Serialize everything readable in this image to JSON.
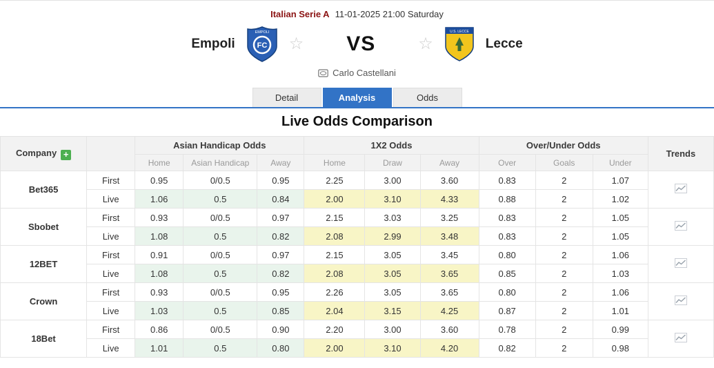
{
  "header": {
    "league": "Italian Serie A",
    "kickoff": "11-01-2025 21:00 Saturday",
    "home": {
      "name": "Empoli"
    },
    "away": {
      "name": "Lecce"
    },
    "vs_label": "VS",
    "venue": "Carlo Castellani",
    "star_glyph": "☆"
  },
  "tabs": [
    {
      "label": "Detail",
      "active": false
    },
    {
      "label": "Analysis",
      "active": true
    },
    {
      "label": "Odds",
      "active": false
    }
  ],
  "section_title": "Live Odds Comparison",
  "table": {
    "company_header": "Company",
    "add_icon": "+",
    "trends_header": "Trends",
    "groups": [
      {
        "label": "Asian Handicap Odds",
        "subs": [
          "Home",
          "Asian Handicap",
          "Away"
        ]
      },
      {
        "label": "1X2 Odds",
        "subs": [
          "Home",
          "Draw",
          "Away"
        ]
      },
      {
        "label": "Over/Under Odds",
        "subs": [
          "Over",
          "Goals",
          "Under"
        ]
      }
    ],
    "companies": [
      {
        "name": "Bet365",
        "rows": [
          {
            "type": "First",
            "ah": [
              "0.95",
              "0/0.5",
              "0.95"
            ],
            "x12": [
              "2.25",
              "3.00",
              "3.60"
            ],
            "ou": [
              "0.83",
              "2",
              "1.07"
            ]
          },
          {
            "type": "Live",
            "ah": [
              "1.06",
              "0.5",
              "0.84"
            ],
            "x12": [
              "2.00",
              "3.10",
              "4.33"
            ],
            "ou": [
              "0.88",
              "2",
              "1.02"
            ]
          }
        ]
      },
      {
        "name": "Sbobet",
        "rows": [
          {
            "type": "First",
            "ah": [
              "0.93",
              "0/0.5",
              "0.97"
            ],
            "x12": [
              "2.15",
              "3.03",
              "3.25"
            ],
            "ou": [
              "0.83",
              "2",
              "1.05"
            ]
          },
          {
            "type": "Live",
            "ah": [
              "1.08",
              "0.5",
              "0.82"
            ],
            "x12": [
              "2.08",
              "2.99",
              "3.48"
            ],
            "ou": [
              "0.83",
              "2",
              "1.05"
            ]
          }
        ]
      },
      {
        "name": "12BET",
        "rows": [
          {
            "type": "First",
            "ah": [
              "0.91",
              "0/0.5",
              "0.97"
            ],
            "x12": [
              "2.15",
              "3.05",
              "3.45"
            ],
            "ou": [
              "0.80",
              "2",
              "1.06"
            ]
          },
          {
            "type": "Live",
            "ah": [
              "1.08",
              "0.5",
              "0.82"
            ],
            "x12": [
              "2.08",
              "3.05",
              "3.65"
            ],
            "ou": [
              "0.85",
              "2",
              "1.03"
            ]
          }
        ]
      },
      {
        "name": "Crown",
        "rows": [
          {
            "type": "First",
            "ah": [
              "0.93",
              "0/0.5",
              "0.95"
            ],
            "x12": [
              "2.26",
              "3.05",
              "3.65"
            ],
            "ou": [
              "0.80",
              "2",
              "1.06"
            ]
          },
          {
            "type": "Live",
            "ah": [
              "1.03",
              "0.5",
              "0.85"
            ],
            "x12": [
              "2.04",
              "3.15",
              "4.25"
            ],
            "ou": [
              "0.87",
              "2",
              "1.01"
            ]
          }
        ]
      },
      {
        "name": "18Bet",
        "rows": [
          {
            "type": "First",
            "ah": [
              "0.86",
              "0/0.5",
              "0.90"
            ],
            "x12": [
              "2.20",
              "3.00",
              "3.60"
            ],
            "ou": [
              "0.78",
              "2",
              "0.99"
            ]
          },
          {
            "type": "Live",
            "ah": [
              "1.01",
              "0.5",
              "0.80"
            ],
            "x12": [
              "2.00",
              "3.10",
              "4.20"
            ],
            "ou": [
              "0.82",
              "2",
              "0.98"
            ]
          }
        ]
      }
    ]
  },
  "colors": {
    "accent_blue": "#3273c6",
    "league_red": "#8b1313",
    "ah_bg": "#edf7ef",
    "x12_bg": "#fbf9d2",
    "add_green": "#4caf50"
  }
}
